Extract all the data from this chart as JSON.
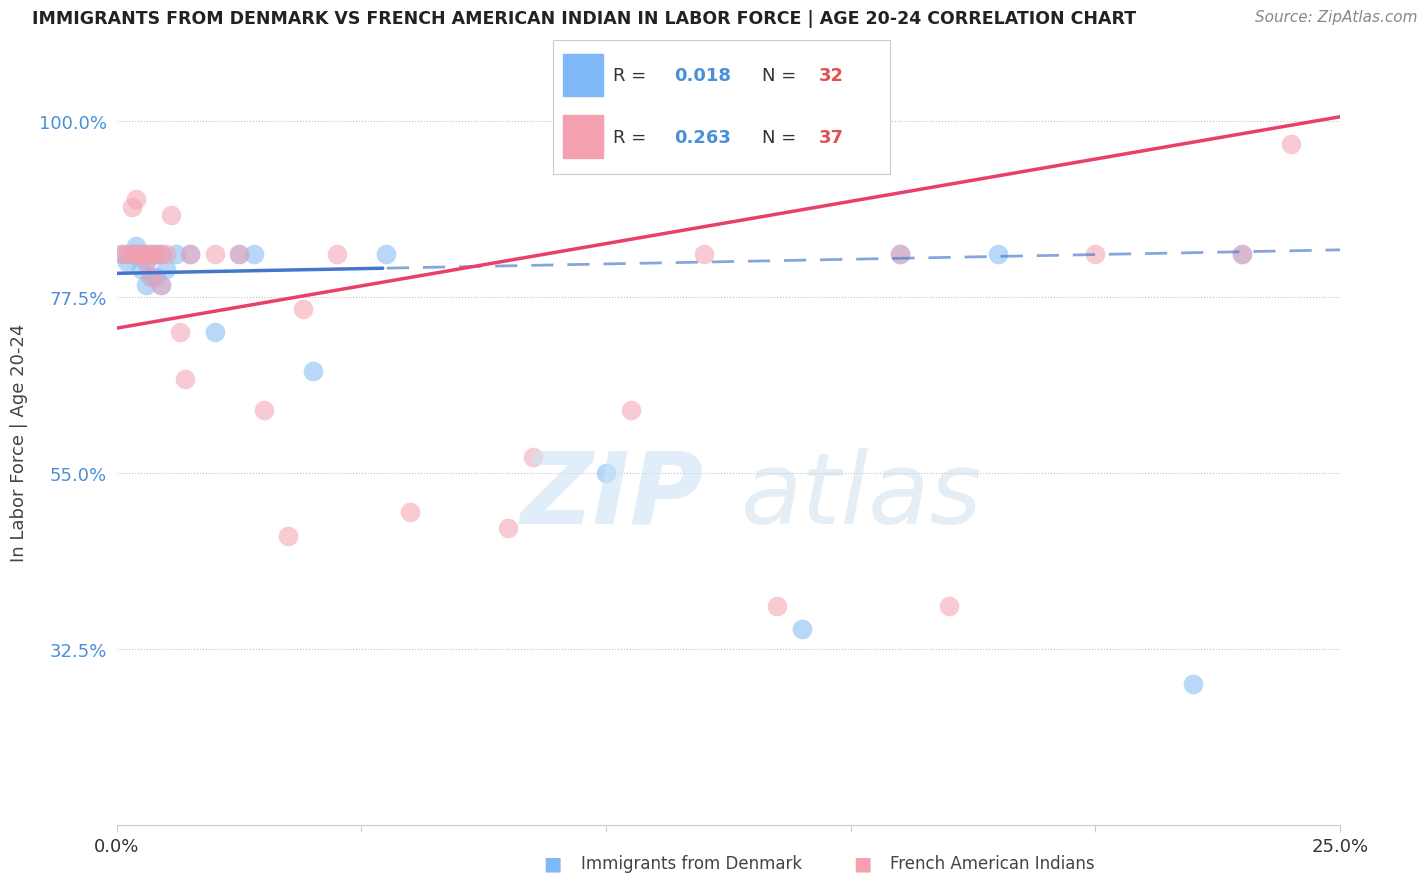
{
  "title": "IMMIGRANTS FROM DENMARK VS FRENCH AMERICAN INDIAN IN LABOR FORCE | AGE 20-24 CORRELATION CHART",
  "source": "Source: ZipAtlas.com",
  "ylabel": "In Labor Force | Age 20-24",
  "x_min": 0.0,
  "x_max": 0.25,
  "y_min": 0.1,
  "y_max": 1.08,
  "y_ticks": [
    0.325,
    0.55,
    0.775,
    1.0
  ],
  "y_tick_labels": [
    "32.5%",
    "55.0%",
    "77.5%",
    "100.0%"
  ],
  "x_ticks": [
    0.0,
    0.05,
    0.1,
    0.15,
    0.2,
    0.25
  ],
  "x_tick_labels": [
    "0.0%",
    "",
    "",
    "",
    "",
    "25.0%"
  ],
  "color_denmark": "#7eb8f7",
  "color_french": "#f4a0b0",
  "color_trend_denmark": "#4477cc",
  "color_trend_french": "#e8406a",
  "legend_r_denmark": "0.018",
  "legend_n_denmark": "32",
  "legend_r_french": "0.263",
  "legend_n_french": "37",
  "legend_label_denmark": "Immigrants from Denmark",
  "legend_label_french": "French American Indians",
  "watermark_zip": "ZIP",
  "watermark_atlas": "atlas",
  "denmark_trend_x0": 0.0,
  "denmark_trend_y0": 0.805,
  "denmark_trend_x1": 0.25,
  "denmark_trend_y1": 0.835,
  "denmark_solid_xend": 0.055,
  "french_trend_x0": 0.0,
  "french_trend_y0": 0.735,
  "french_trend_x1": 0.25,
  "french_trend_y1": 1.005,
  "scatter_denmark_x": [
    0.001,
    0.002,
    0.003,
    0.003,
    0.004,
    0.004,
    0.005,
    0.005,
    0.005,
    0.006,
    0.006,
    0.006,
    0.007,
    0.007,
    0.008,
    0.008,
    0.009,
    0.009,
    0.01,
    0.012,
    0.015,
    0.02,
    0.025,
    0.028,
    0.04,
    0.055,
    0.14,
    0.16,
    0.18,
    0.23,
    0.1,
    0.22
  ],
  "scatter_denmark_y": [
    0.83,
    0.82,
    0.83,
    0.83,
    0.83,
    0.84,
    0.81,
    0.83,
    0.83,
    0.79,
    0.82,
    0.83,
    0.8,
    0.83,
    0.8,
    0.83,
    0.79,
    0.83,
    0.81,
    0.83,
    0.83,
    0.73,
    0.83,
    0.83,
    0.68,
    0.83,
    0.35,
    0.83,
    0.83,
    0.83,
    0.55,
    0.28
  ],
  "scatter_french_x": [
    0.001,
    0.002,
    0.003,
    0.003,
    0.004,
    0.004,
    0.005,
    0.005,
    0.006,
    0.006,
    0.007,
    0.007,
    0.008,
    0.009,
    0.009,
    0.01,
    0.011,
    0.013,
    0.014,
    0.015,
    0.02,
    0.025,
    0.03,
    0.038,
    0.06,
    0.085,
    0.12,
    0.16,
    0.2,
    0.23,
    0.24,
    0.08,
    0.17,
    0.105,
    0.045,
    0.035,
    0.135
  ],
  "scatter_french_y": [
    0.83,
    0.83,
    0.83,
    0.89,
    0.83,
    0.9,
    0.83,
    0.83,
    0.82,
    0.83,
    0.8,
    0.83,
    0.83,
    0.79,
    0.83,
    0.83,
    0.88,
    0.73,
    0.67,
    0.83,
    0.83,
    0.83,
    0.63,
    0.76,
    0.5,
    0.57,
    0.83,
    0.83,
    0.83,
    0.83,
    0.97,
    0.48,
    0.38,
    0.63,
    0.83,
    0.47,
    0.38
  ]
}
